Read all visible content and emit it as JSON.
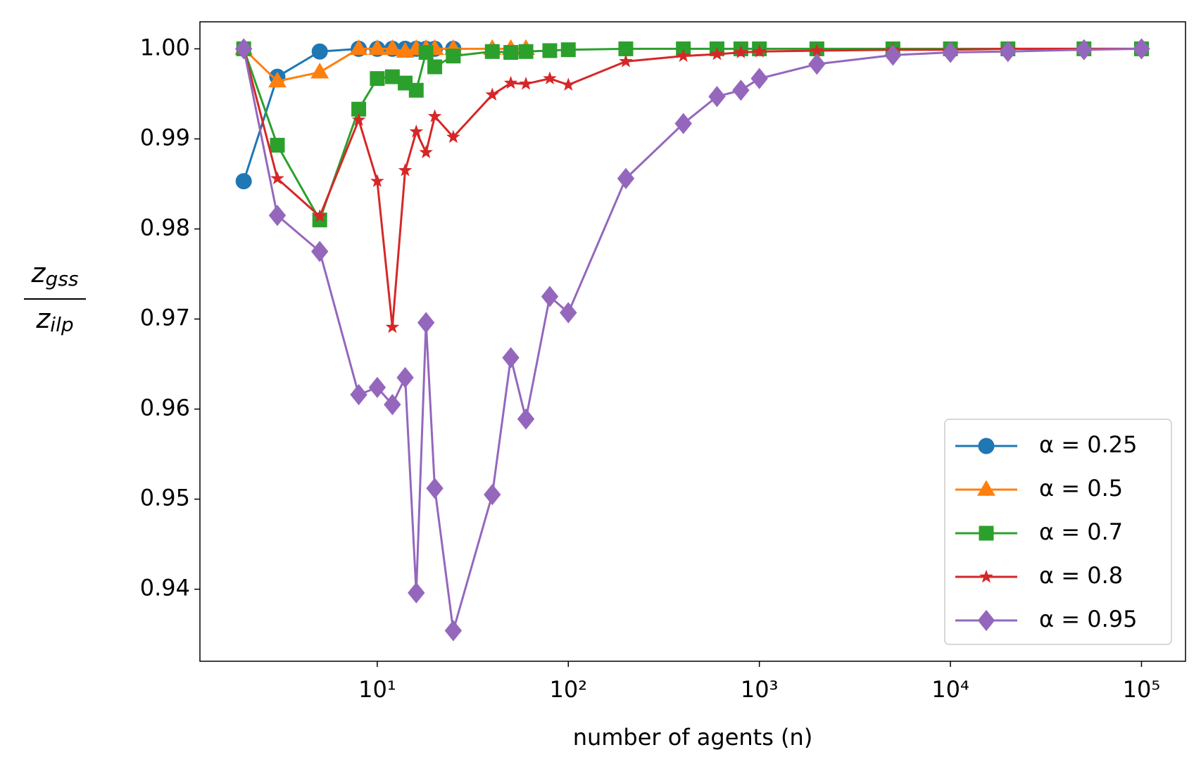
{
  "chart_data": {
    "type": "line",
    "xlabel": "number of agents (n)",
    "ylabel": {
      "numerator": [
        "z",
        "gss"
      ],
      "denominator": [
        "z",
        "ilp"
      ]
    },
    "xscale": "log",
    "xlim": [
      1.18,
      170000
    ],
    "ylim": [
      0.932,
      1.003
    ],
    "xticks": [
      {
        "value": 10,
        "label": "10¹"
      },
      {
        "value": 100,
        "label": "10²"
      },
      {
        "value": 1000,
        "label": "10³"
      },
      {
        "value": 10000,
        "label": "10⁴"
      },
      {
        "value": 100000,
        "label": "10⁵"
      }
    ],
    "yticks": [
      0.94,
      0.95,
      0.96,
      0.97,
      0.98,
      0.99,
      {
        "value": 1,
        "label": "1.00"
      }
    ],
    "grid": false,
    "legend": "lower right",
    "series": [
      {
        "name": "α = 0.25",
        "color": "#1f77b4",
        "marker": "circle",
        "x": [
          2,
          3,
          5,
          8,
          10,
          12,
          14,
          16,
          18,
          20,
          25
        ],
        "values": [
          0.9853,
          0.9969,
          0.9997,
          1,
          1,
          1,
          1,
          1,
          1,
          1,
          1
        ]
      },
      {
        "name": "α = 0.5",
        "color": "#ff7f0e",
        "marker": "triangle",
        "x": [
          2,
          3,
          5,
          8,
          10,
          12,
          14,
          16,
          18,
          20,
          25,
          40,
          50,
          60
        ],
        "values": [
          1,
          0.9964,
          0.9974,
          1,
          1,
          1,
          0.9997,
          1,
          1,
          1,
          1,
          1,
          1,
          1
        ]
      },
      {
        "name": "α = 0.7",
        "color": "#2ca02c",
        "marker": "square",
        "x": [
          2,
          3,
          5,
          8,
          10,
          12,
          14,
          16,
          18,
          20,
          25,
          40,
          50,
          60,
          80,
          100,
          200,
          400,
          600,
          800,
          1000,
          2000,
          5000,
          10000,
          20000,
          50000,
          100000
        ],
        "values": [
          1,
          0.9893,
          0.981,
          0.9933,
          0.9967,
          0.9969,
          0.9962,
          0.9954,
          0.9996,
          0.998,
          0.9992,
          0.9997,
          0.9996,
          0.9997,
          0.9998,
          0.9999,
          1,
          1,
          1,
          1,
          1,
          1,
          1,
          1,
          1,
          1,
          1
        ]
      },
      {
        "name": "α = 0.8",
        "color": "#d62728",
        "marker": "star",
        "x": [
          2,
          3,
          5,
          8,
          10,
          12,
          14,
          16,
          18,
          20,
          25,
          40,
          50,
          60,
          80,
          100,
          200,
          400,
          600,
          800,
          1000,
          2000,
          5000,
          10000,
          20000,
          50000,
          100000
        ],
        "values": [
          1,
          0.9856,
          0.9814,
          0.9921,
          0.9853,
          0.9691,
          0.9865,
          0.9908,
          0.9885,
          0.9925,
          0.9902,
          0.9949,
          0.9962,
          0.9961,
          0.9967,
          0.996,
          0.9986,
          0.9992,
          0.9994,
          0.9996,
          0.9997,
          0.9998,
          0.9999,
          0.9999,
          1,
          1,
          1
        ]
      },
      {
        "name": "α = 0.95",
        "color": "#9467bd",
        "marker": "diamond",
        "x": [
          2,
          3,
          5,
          8,
          10,
          12,
          14,
          16,
          18,
          20,
          25,
          40,
          50,
          60,
          80,
          100,
          200,
          400,
          600,
          800,
          1000,
          2000,
          5000,
          10000,
          20000,
          50000,
          100000
        ],
        "values": [
          1,
          0.9815,
          0.9775,
          0.9616,
          0.9624,
          0.9605,
          0.9635,
          0.9396,
          0.9696,
          0.9512,
          0.9354,
          0.9505,
          0.9657,
          0.9589,
          0.9725,
          0.9707,
          0.9856,
          0.9917,
          0.9947,
          0.9954,
          0.9967,
          0.9983,
          0.9993,
          0.9996,
          0.9997,
          0.9999,
          1
        ]
      }
    ]
  }
}
